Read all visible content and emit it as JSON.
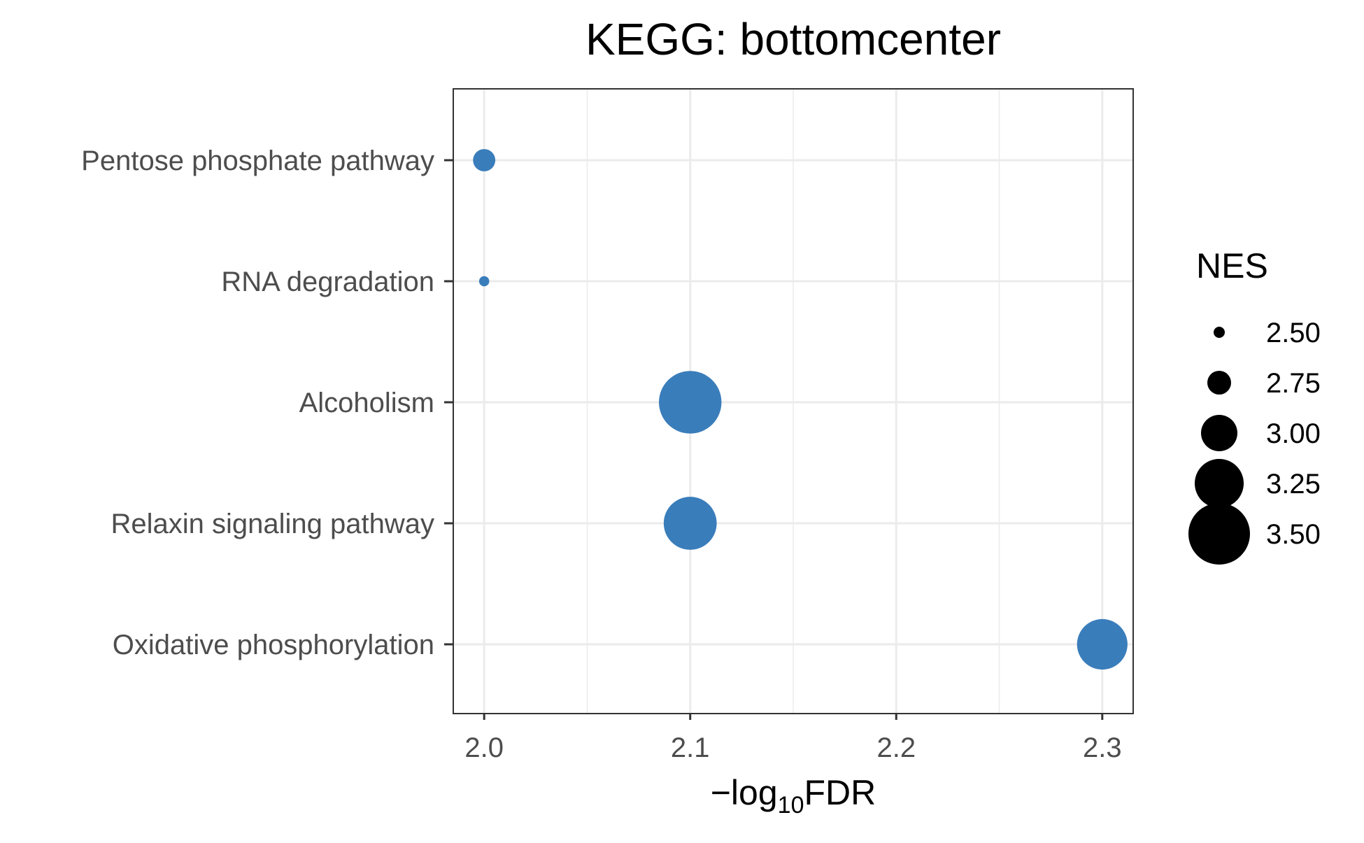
{
  "chart_data": {
    "type": "scatter",
    "title": "KEGG: bottomcenter",
    "xlabel": {
      "prefix": "−log",
      "subscript": "10",
      "suffix": "FDR"
    },
    "ylabel": "",
    "xlim": [
      1.985,
      2.315
    ],
    "x_ticks": [
      "2.0",
      "2.1",
      "2.2",
      "2.3"
    ],
    "x_tick_values": [
      2.0,
      2.1,
      2.2,
      2.3
    ],
    "x_minor_grid": [
      2.05,
      2.15,
      2.25
    ],
    "categories": [
      "Pentose phosphate pathway",
      "RNA degradation",
      "Alcoholism",
      "Relaxin signaling pathway",
      "Oxidative phosphorylation"
    ],
    "points": [
      {
        "term": "Pentose phosphate pathway",
        "neg_log10_fdr": 2.0,
        "nes": 2.72
      },
      {
        "term": "RNA degradation",
        "neg_log10_fdr": 2.0,
        "nes": 2.48
      },
      {
        "term": "Alcoholism",
        "neg_log10_fdr": 2.1,
        "nes": 3.52
      },
      {
        "term": "Relaxin signaling pathway",
        "neg_log10_fdr": 2.1,
        "nes": 3.33
      },
      {
        "term": "Oxidative phosphorylation",
        "neg_log10_fdr": 2.3,
        "nes": 3.28
      }
    ],
    "size_legend": {
      "title": "NES",
      "entries": [
        {
          "label": "2.50",
          "value": 2.5
        },
        {
          "label": "2.75",
          "value": 2.75
        },
        {
          "label": "3.00",
          "value": 3.0
        },
        {
          "label": "3.25",
          "value": 3.25
        },
        {
          "label": "3.50",
          "value": 3.5
        }
      ],
      "placement": "right"
    },
    "point_color": "#3a7dbb",
    "legend_color": "#000000",
    "grid": true,
    "panel_border": true
  }
}
